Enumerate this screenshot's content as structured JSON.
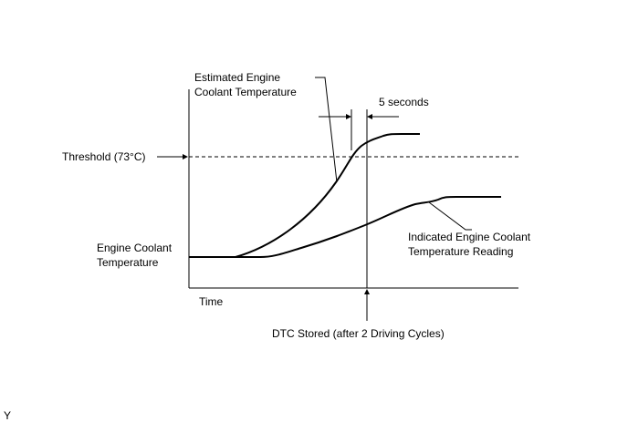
{
  "diagram": {
    "estimated_label": [
      "Estimated Engine",
      "Coolant Temperature"
    ],
    "interval_label": "5 seconds",
    "threshold_label": "Threshold (73°C)",
    "y_axis_label": [
      "Engine Coolant",
      "Temperature"
    ],
    "x_axis_label": "Time",
    "indicated_label": [
      "Indicated Engine Coolant",
      "Temperature Reading"
    ],
    "dtc_label": "DTC Stored (after 2 Driving Cycles)",
    "corner_mark": "Y"
  }
}
